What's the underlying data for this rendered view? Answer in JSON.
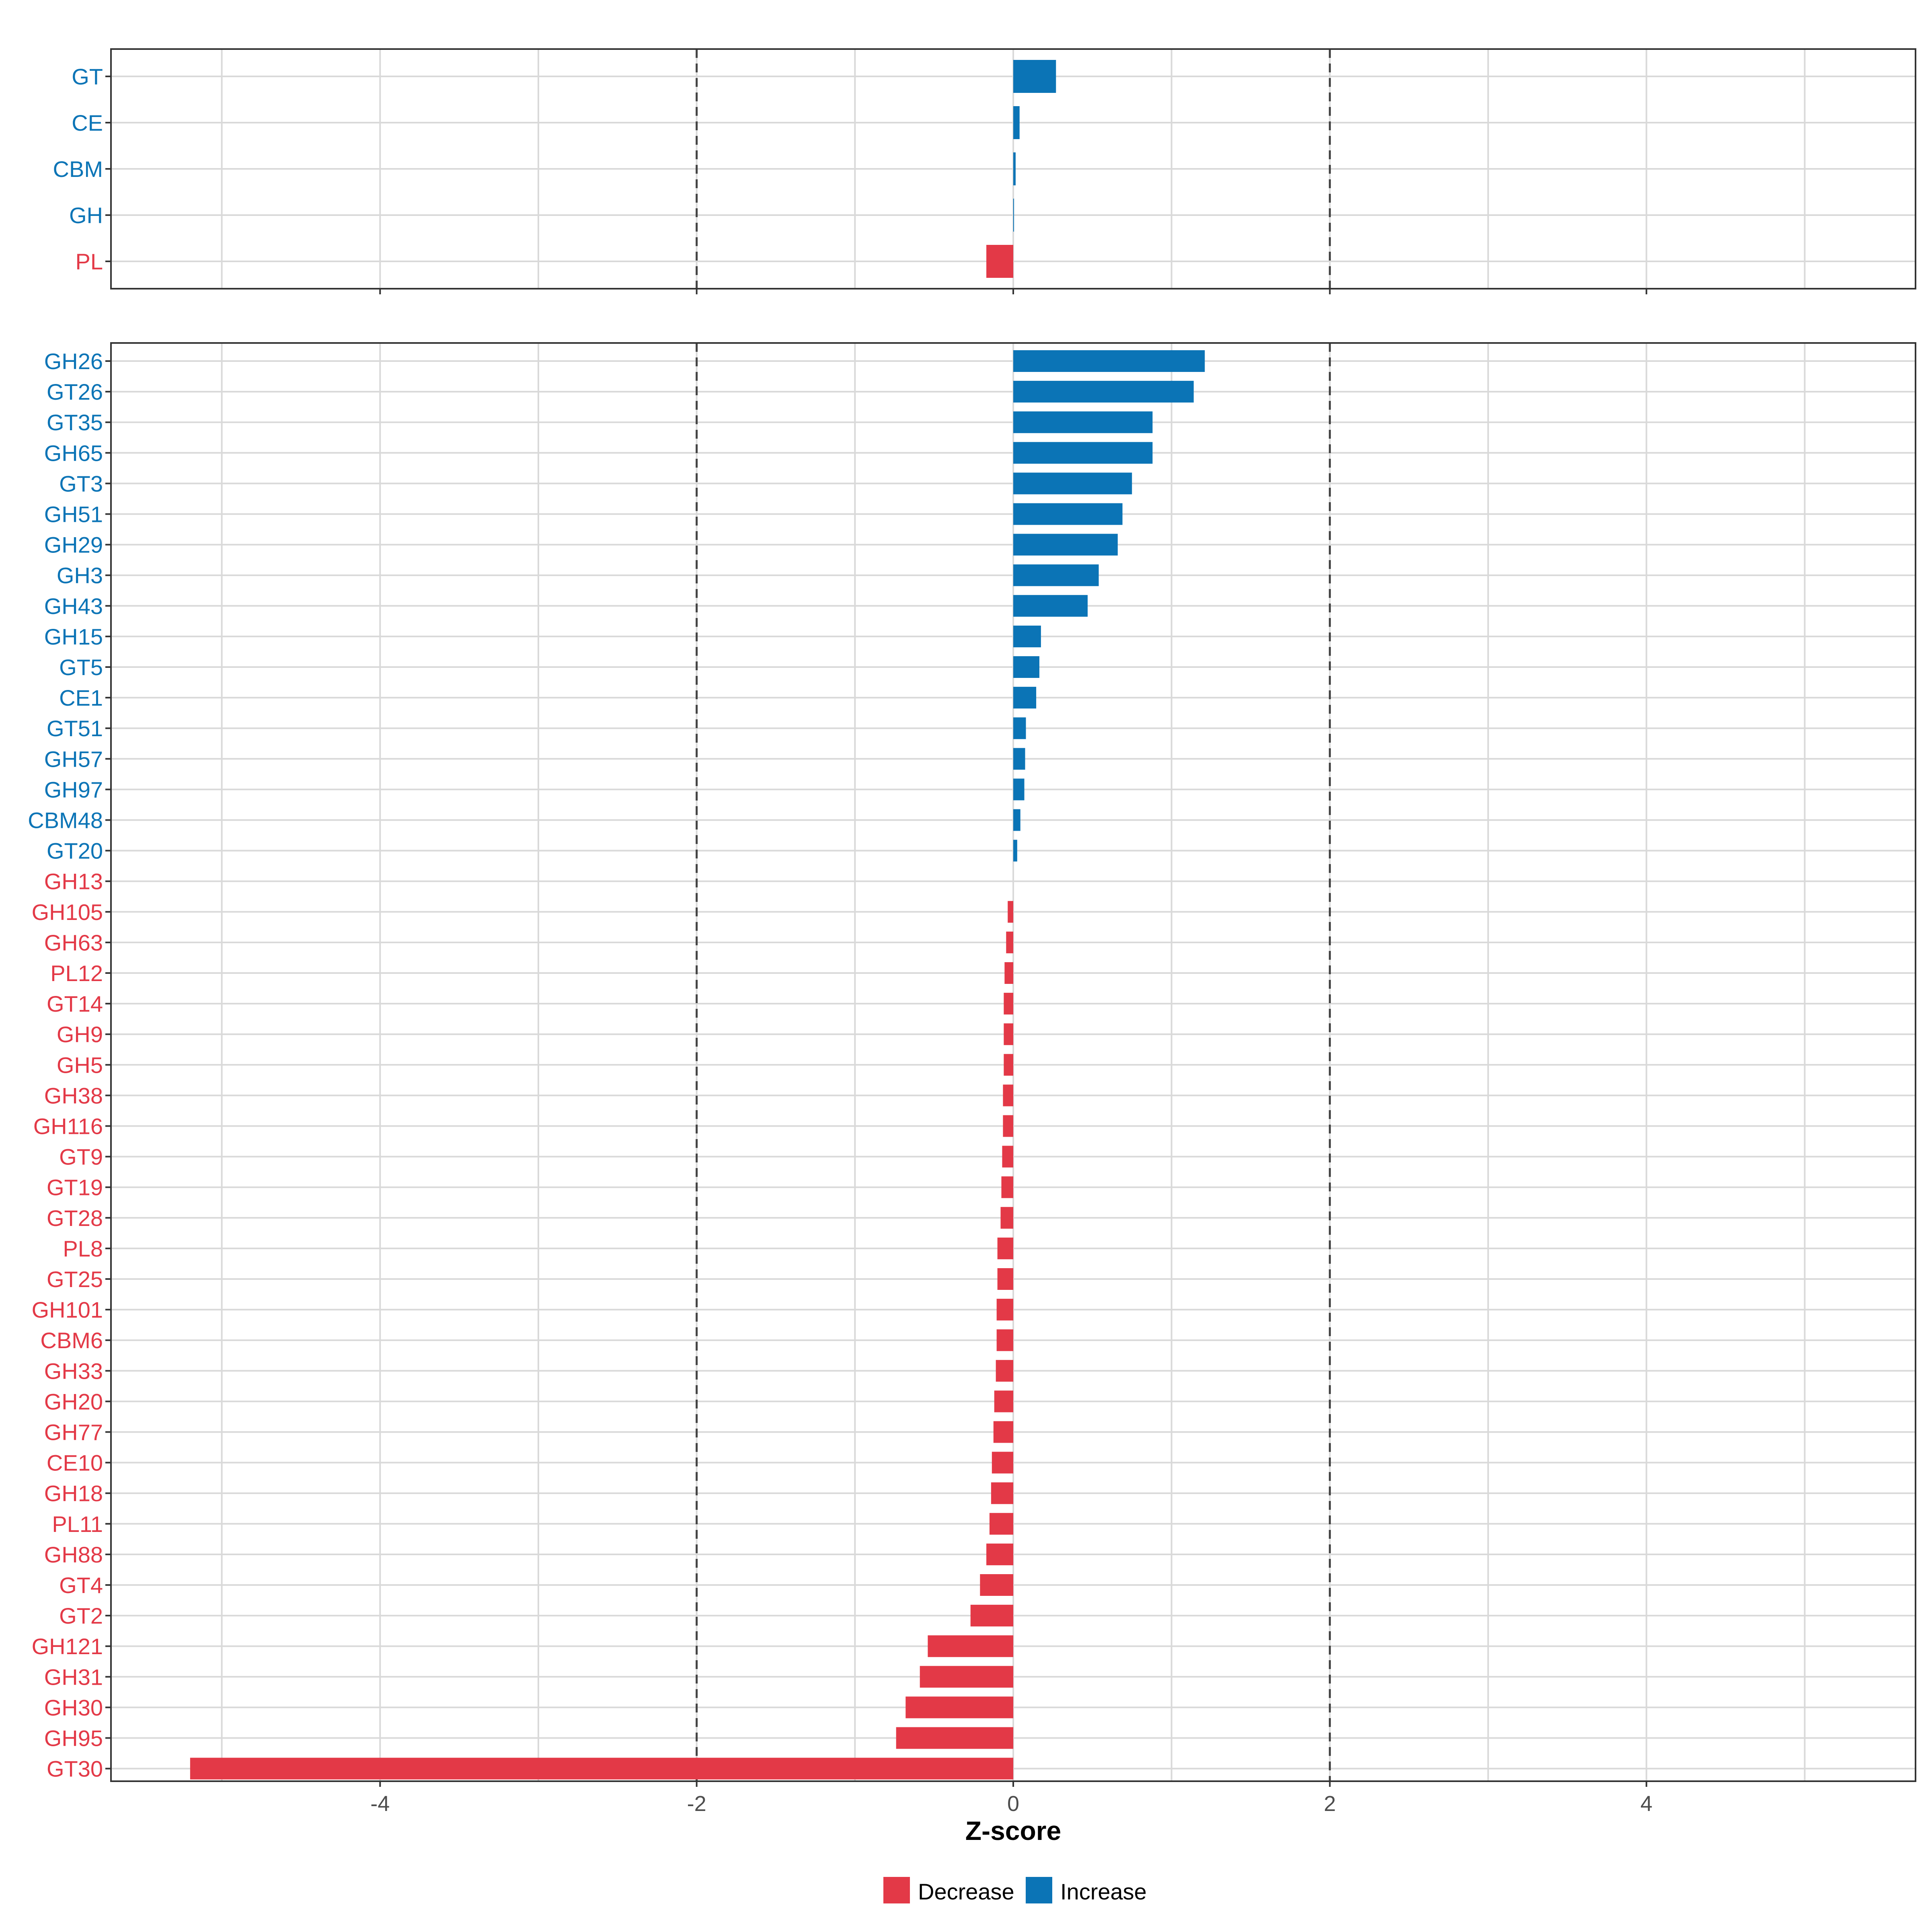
{
  "colors": {
    "increase": "#0b74b6",
    "decrease": "#e33947",
    "grid": "#d9d9d9",
    "panel_border": "#333333",
    "ref_line": "#444444",
    "tick_text": "#4d4d4d"
  },
  "chart_data": [
    {
      "type": "bar",
      "orientation": "horizontal",
      "panel": "top",
      "categories": [
        "GT",
        "CE",
        "CBM",
        "GH",
        "PL"
      ],
      "values": [
        0.27,
        0.04,
        0.015,
        0.005,
        -0.17
      ],
      "groups": [
        "Increase",
        "Increase",
        "Increase",
        "Increase",
        "Decrease"
      ]
    },
    {
      "type": "bar",
      "orientation": "horizontal",
      "panel": "bottom",
      "categories": [
        "GH26",
        "GT26",
        "GT35",
        "GH65",
        "GT3",
        "GH51",
        "GH29",
        "GH3",
        "GH43",
        "GH15",
        "GT5",
        "CE1",
        "GT51",
        "GH57",
        "GH97",
        "CBM48",
        "GT20",
        "GH13",
        "GH105",
        "GH63",
        "PL12",
        "GT14",
        "GH9",
        "GH5",
        "GH38",
        "GH116",
        "GT9",
        "GT19",
        "GT28",
        "PL8",
        "GT25",
        "GH101",
        "CBM6",
        "GH33",
        "GH20",
        "GH77",
        "CE10",
        "GH18",
        "PL11",
        "GH88",
        "GT4",
        "GT2",
        "GH121",
        "GH31",
        "GH30",
        "GH95",
        "GT30"
      ],
      "values": [
        1.21,
        1.14,
        0.88,
        0.88,
        0.75,
        0.69,
        0.66,
        0.54,
        0.47,
        0.175,
        0.165,
        0.145,
        0.08,
        0.075,
        0.07,
        0.045,
        0.025,
        0.0,
        -0.035,
        -0.045,
        -0.055,
        -0.06,
        -0.06,
        -0.06,
        -0.065,
        -0.065,
        -0.07,
        -0.075,
        -0.08,
        -0.1,
        -0.1,
        -0.105,
        -0.105,
        -0.11,
        -0.12,
        -0.125,
        -0.135,
        -0.14,
        -0.15,
        -0.17,
        -0.21,
        -0.27,
        -0.54,
        -0.59,
        -0.68,
        -0.74,
        -5.2
      ],
      "groups": [
        "Increase",
        "Increase",
        "Increase",
        "Increase",
        "Increase",
        "Increase",
        "Increase",
        "Increase",
        "Increase",
        "Increase",
        "Increase",
        "Increase",
        "Increase",
        "Increase",
        "Increase",
        "Increase",
        "Increase",
        "Decrease",
        "Decrease",
        "Decrease",
        "Decrease",
        "Decrease",
        "Decrease",
        "Decrease",
        "Decrease",
        "Decrease",
        "Decrease",
        "Decrease",
        "Decrease",
        "Decrease",
        "Decrease",
        "Decrease",
        "Decrease",
        "Decrease",
        "Decrease",
        "Decrease",
        "Decrease",
        "Decrease",
        "Decrease",
        "Decrease",
        "Decrease",
        "Decrease",
        "Decrease",
        "Decrease",
        "Decrease",
        "Decrease",
        "Decrease"
      ]
    }
  ],
  "axis": {
    "xlabel": "Z-score",
    "xlim": [
      -5.7,
      5.7
    ],
    "ticks": [
      -4,
      -2,
      0,
      2,
      4
    ],
    "tick_labels": [
      "-4",
      "-2",
      "0",
      "2",
      "4"
    ],
    "minor_grid": [
      -5,
      -3,
      -1,
      1,
      3,
      5
    ],
    "reference_lines": [
      -2,
      2
    ],
    "grid": true
  },
  "legend": {
    "position": "bottom",
    "items": [
      {
        "label": "Decrease",
        "group": "Decrease"
      },
      {
        "label": "Increase",
        "group": "Increase"
      }
    ]
  }
}
